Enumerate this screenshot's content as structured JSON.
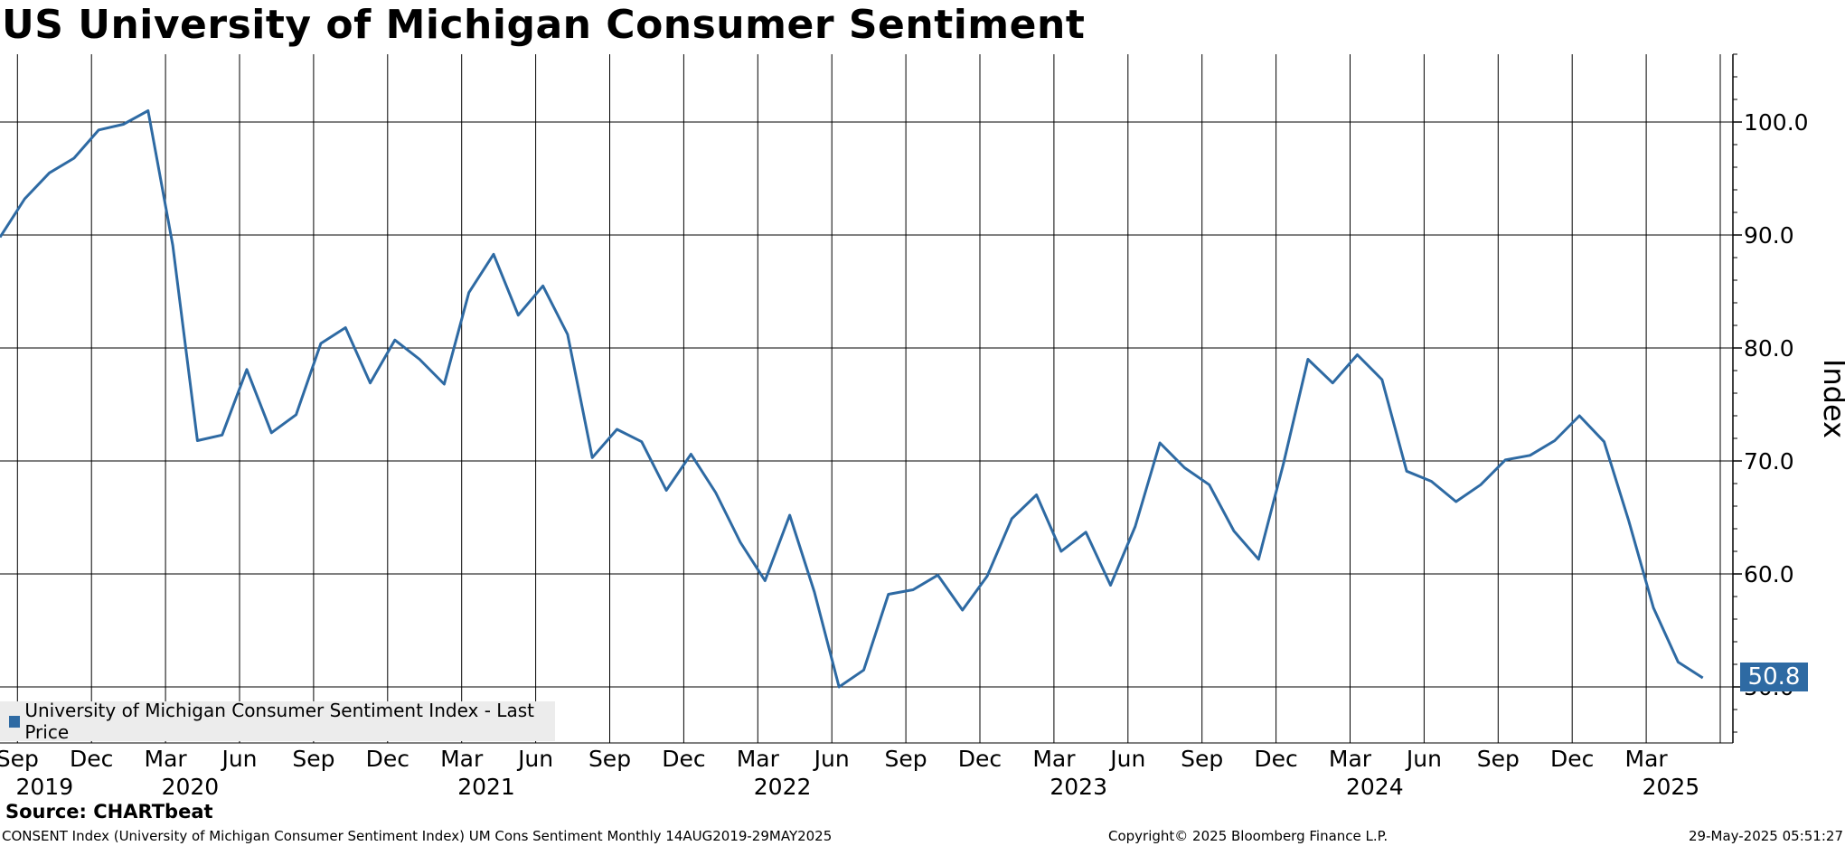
{
  "title": "US University of Michigan Consumer Sentiment",
  "legend": {
    "label": "University of Michigan Consumer Sentiment Index - Last Price"
  },
  "source": "Source: CHARTbeat",
  "footer": {
    "left": "CONSENT Index (University of Michigan Consumer Sentiment Index) UM Cons Sentiment  Monthly 14AUG2019-29MAY2025",
    "middle": "Copyright© 2025 Bloomberg Finance L.P.",
    "right": "29-May-2025 05:51:27"
  },
  "last_value_label": "50.8",
  "colors": {
    "series": "#2e6aa3",
    "grid": "#000000",
    "legend_bg": "#ececec"
  },
  "chart_data": {
    "type": "line",
    "title": "US University of Michigan Consumer Sentiment",
    "ylabel": "Index",
    "xlabel": "",
    "ylim": [
      45.0,
      106.0
    ],
    "y_ticks": [
      "50.0",
      "60.0",
      "70.0",
      "80.0",
      "90.0",
      "100.0"
    ],
    "x_tick_months": [
      "Sep",
      "Dec",
      "Mar",
      "Jun",
      "Sep",
      "Dec",
      "Mar",
      "Jun",
      "Sep",
      "Dec",
      "Mar",
      "Jun",
      "Sep",
      "Dec",
      "Mar",
      "Jun",
      "Sep",
      "Dec",
      "Mar",
      "Jun",
      "Sep",
      "Dec",
      "Mar"
    ],
    "x_tick_years": [
      "2019",
      "2020",
      "2021",
      "2022",
      "2023",
      "2024",
      "2025"
    ],
    "grid": true,
    "legend_position": "bottom-left",
    "series": [
      {
        "name": "University of Michigan Consumer Sentiment Index - Last Price",
        "start": "2019-08",
        "last_value": 50.8,
        "values": [
          89.8,
          93.2,
          95.5,
          96.8,
          99.3,
          99.8,
          101.0,
          89.1,
          71.8,
          72.3,
          78.1,
          72.5,
          74.1,
          80.4,
          81.8,
          76.9,
          80.7,
          79.0,
          76.8,
          84.9,
          88.3,
          82.9,
          85.5,
          81.2,
          70.3,
          72.8,
          71.7,
          67.4,
          70.6,
          67.2,
          62.8,
          59.4,
          65.2,
          58.4,
          50.0,
          51.5,
          58.2,
          58.6,
          59.9,
          56.8,
          59.8,
          64.9,
          67.0,
          62.0,
          63.7,
          59.0,
          64.2,
          71.6,
          69.4,
          67.9,
          63.8,
          61.3,
          69.7,
          79.0,
          76.9,
          79.4,
          77.2,
          69.1,
          68.2,
          66.4,
          67.9,
          70.1,
          70.5,
          71.8,
          74.0,
          71.7,
          64.7,
          57.0,
          52.2,
          50.8
        ]
      }
    ]
  }
}
